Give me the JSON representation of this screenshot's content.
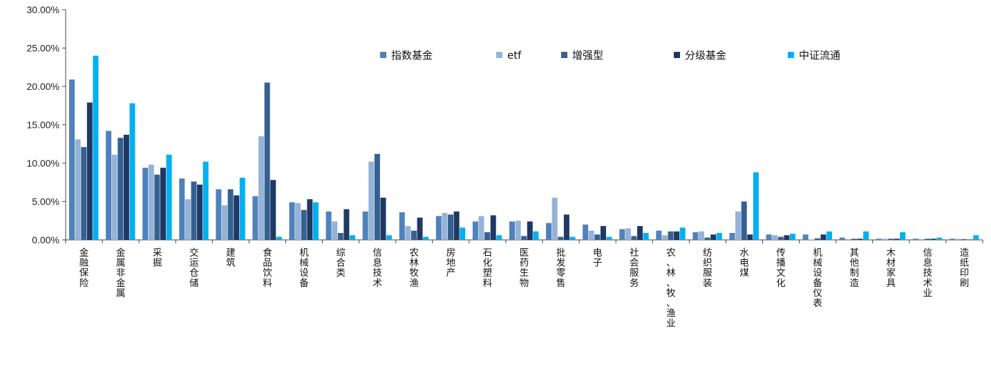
{
  "chart_data": {
    "type": "bar",
    "title": "",
    "xlabel": "",
    "ylabel": "",
    "ylim": [
      0,
      30
    ],
    "yticks": [
      0,
      5,
      10,
      15,
      20,
      25,
      30
    ],
    "ytick_labels": [
      "0.00%",
      "5.00%",
      "10.00%",
      "15.00%",
      "20.00%",
      "25.00%",
      "30.00%"
    ],
    "grid": false,
    "legend_position": "top-center",
    "categories": [
      "金融保险",
      "金属非金属",
      "采掘",
      "交运仓储",
      "建筑",
      "食品饮料",
      "机械设备",
      "综合类",
      "信息技术",
      "农林牧渔",
      "房地产",
      "石化塑料",
      "医药生物",
      "批发零售",
      "电子",
      "社会服务",
      "农、林、牧、渔业",
      "纺织服装",
      "水电煤",
      "传播文化",
      "机械设备仪表",
      "其他制造",
      "木材家具",
      "信息技术业",
      "造纸印刷"
    ],
    "series": [
      {
        "name": "指数基金",
        "color": "#4F81BD",
        "values": [
          20.9,
          14.2,
          9.4,
          8.0,
          6.6,
          5.7,
          4.9,
          3.7,
          3.7,
          3.6,
          3.1,
          2.4,
          2.4,
          2.2,
          2.0,
          1.4,
          1.2,
          1.0,
          0.9,
          0.7,
          0.7,
          0.3,
          0.15,
          0.15,
          0.15
        ]
      },
      {
        "name": "etf",
        "color": "#95B3D7",
        "values": [
          13.1,
          11.1,
          9.8,
          5.3,
          4.5,
          13.5,
          4.8,
          2.4,
          10.2,
          1.8,
          3.5,
          3.1,
          2.5,
          5.5,
          1.2,
          1.5,
          0.6,
          1.1,
          3.7,
          0.6,
          0.05,
          0.0,
          0.15,
          0.0,
          0.15
        ]
      },
      {
        "name": "增强型",
        "color": "#366092",
        "values": [
          12.1,
          13.3,
          8.5,
          7.6,
          6.6,
          20.5,
          3.9,
          0.9,
          11.2,
          1.2,
          3.3,
          1.0,
          0.5,
          0.4,
          0.7,
          0.5,
          1.1,
          0.3,
          5.0,
          0.4,
          0.2,
          0.15,
          0.15,
          0.15,
          0.1
        ]
      },
      {
        "name": "分级基金",
        "color": "#1F3864",
        "values": [
          17.9,
          13.7,
          9.4,
          7.2,
          5.8,
          7.8,
          5.3,
          4.0,
          5.5,
          2.9,
          3.7,
          3.2,
          2.4,
          3.3,
          1.8,
          1.8,
          1.1,
          0.7,
          0.7,
          0.6,
          0.7,
          0.15,
          0.15,
          0.15,
          0.05
        ]
      },
      {
        "name": "中证流通",
        "color": "#00B0F0",
        "values": [
          24.0,
          17.8,
          11.1,
          10.2,
          8.1,
          0.4,
          4.9,
          0.6,
          0.6,
          0.4,
          1.6,
          0.6,
          1.1,
          0.4,
          0.4,
          0.9,
          1.6,
          0.9,
          8.8,
          0.8,
          1.1,
          1.1,
          1.0,
          0.3,
          0.6
        ]
      }
    ]
  }
}
